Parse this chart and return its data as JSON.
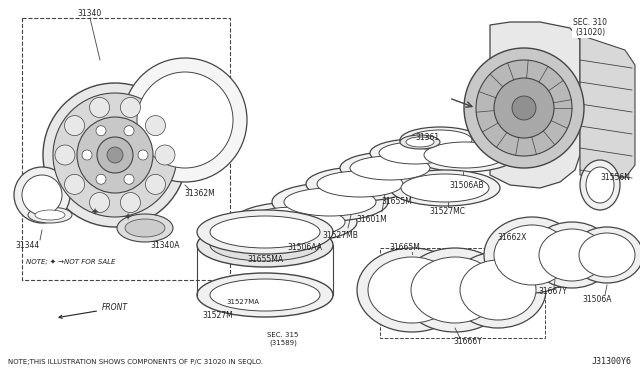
{
  "bg_color": "#ffffff",
  "line_color": "#444444",
  "text_color": "#222222",
  "note_bottom": "NOTE;THIS ILLUSTRATION SHOWS COMPONENTS OF P/C 31020 IN SEQLO.",
  "part_id": "J31300Y6",
  "sec_label1": "SEC. 310\n(31020)",
  "sec_label2": "SEC. 315\n(31589)"
}
